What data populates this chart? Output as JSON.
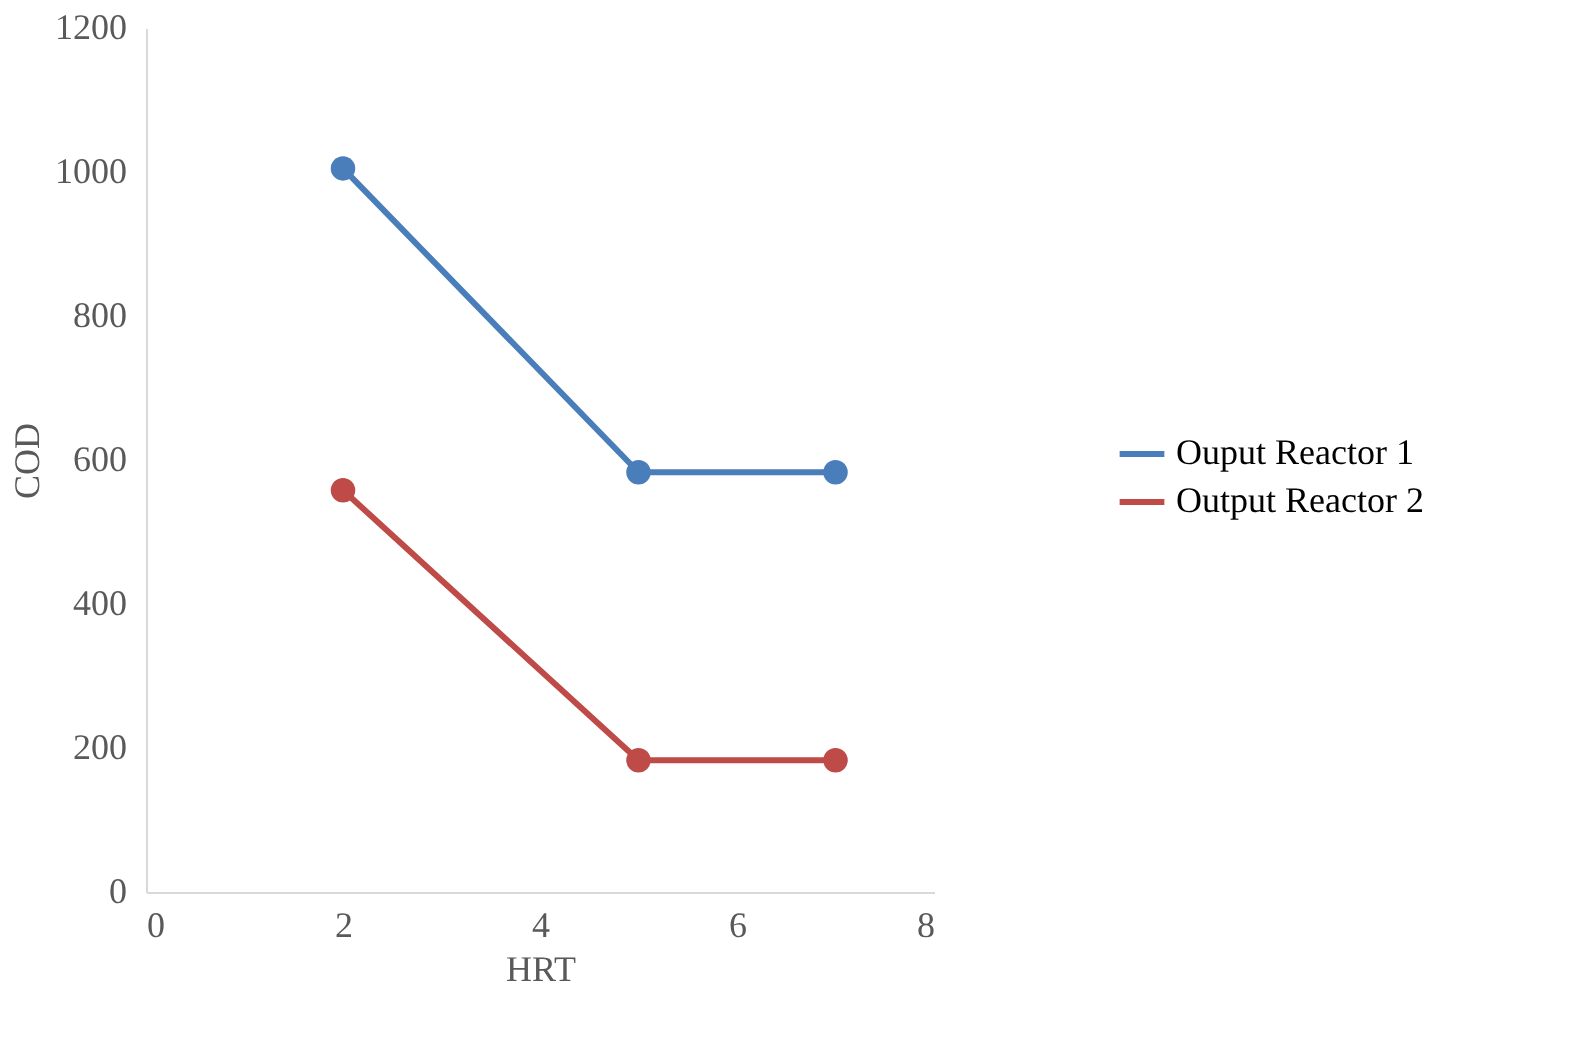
{
  "chart_data": {
    "type": "line",
    "xlabel": "HRT",
    "ylabel": "COD",
    "x": [
      2,
      5,
      7
    ],
    "series": [
      {
        "name": "Ouput Reactor 1",
        "color": "#4a7ebb",
        "values": [
          1005,
          583,
          583
        ]
      },
      {
        "name": "Output Reactor 2",
        "color": "#be4b48",
        "values": [
          558,
          183,
          183
        ]
      }
    ],
    "xlim": [
      0,
      8
    ],
    "xticks": [
      0,
      2,
      4,
      6,
      8
    ],
    "ylim": [
      0,
      1200
    ],
    "yticks": [
      0,
      200,
      400,
      600,
      800,
      1000,
      1200
    ],
    "grid": false,
    "legend": "right",
    "marker": "circle",
    "line_style": "solid"
  }
}
